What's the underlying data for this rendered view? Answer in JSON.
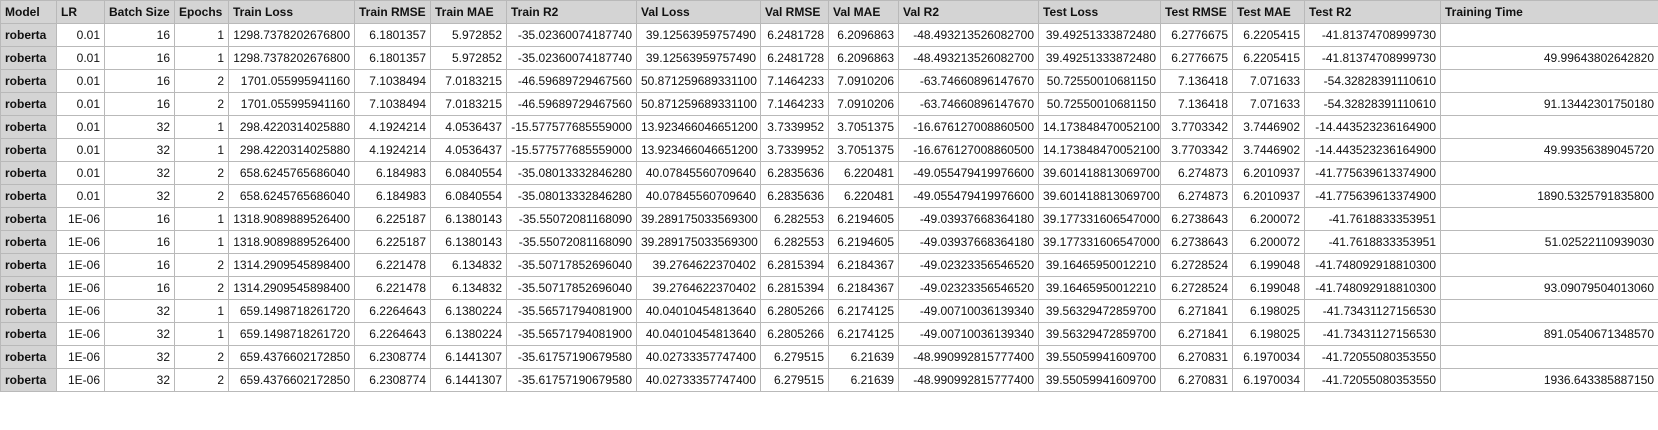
{
  "columns": [
    "Model",
    "LR",
    "Batch Size",
    "Epochs",
    "Train Loss",
    "Train RMSE",
    "Train MAE",
    "Train R2",
    "Val Loss",
    "Val RMSE",
    "Val MAE",
    "Val R2",
    "Test Loss",
    "Test RMSE",
    "Test MAE",
    "Test R2",
    "Training Time"
  ],
  "rows": [
    [
      "roberta",
      "0.01",
      "16",
      "1",
      "1298.7378202676800",
      "6.1801357",
      "5.972852",
      "-35.02360074187740",
      "39.12563959757490",
      "6.2481728",
      "6.2096863",
      "-48.493213526082700",
      "39.49251333872480",
      "6.2776675",
      "6.2205415",
      "-41.81374708999730",
      ""
    ],
    [
      "roberta",
      "0.01",
      "16",
      "1",
      "1298.7378202676800",
      "6.1801357",
      "5.972852",
      "-35.02360074187740",
      "39.12563959757490",
      "6.2481728",
      "6.2096863",
      "-48.493213526082700",
      "39.49251333872480",
      "6.2776675",
      "6.2205415",
      "-41.81374708999730",
      "49.99643802642820"
    ],
    [
      "roberta",
      "0.01",
      "16",
      "2",
      "1701.055995941160",
      "7.1038494",
      "7.0183215",
      "-46.59689729467560",
      "50.871259689331100",
      "7.1464233",
      "7.0910206",
      "-63.74660896147670",
      "50.72550010681150",
      "7.136418",
      "7.071633",
      "-54.32828391110610",
      ""
    ],
    [
      "roberta",
      "0.01",
      "16",
      "2",
      "1701.055995941160",
      "7.1038494",
      "7.0183215",
      "-46.59689729467560",
      "50.871259689331100",
      "7.1464233",
      "7.0910206",
      "-63.74660896147670",
      "50.72550010681150",
      "7.136418",
      "7.071633",
      "-54.32828391110610",
      "91.13442301750180"
    ],
    [
      "roberta",
      "0.01",
      "32",
      "1",
      "298.4220314025880",
      "4.1924214",
      "4.0536437",
      "-15.577577685559000",
      "13.923466046651200",
      "3.7339952",
      "3.7051375",
      "-16.676127008860500",
      "14.173848470052100",
      "3.7703342",
      "3.7446902",
      "-14.443523236164900",
      ""
    ],
    [
      "roberta",
      "0.01",
      "32",
      "1",
      "298.4220314025880",
      "4.1924214",
      "4.0536437",
      "-15.577577685559000",
      "13.923466046651200",
      "3.7339952",
      "3.7051375",
      "-16.676127008860500",
      "14.173848470052100",
      "3.7703342",
      "3.7446902",
      "-14.443523236164900",
      "49.99356389045720"
    ],
    [
      "roberta",
      "0.01",
      "32",
      "2",
      "658.6245765686040",
      "6.184983",
      "6.0840554",
      "-35.08013332846280",
      "40.07845560709640",
      "6.2835636",
      "6.220481",
      "-49.055479419976600",
      "39.601418813069700",
      "6.274873",
      "6.2010937",
      "-41.775639613374900",
      ""
    ],
    [
      "roberta",
      "0.01",
      "32",
      "2",
      "658.6245765686040",
      "6.184983",
      "6.0840554",
      "-35.08013332846280",
      "40.07845560709640",
      "6.2835636",
      "6.220481",
      "-49.055479419976600",
      "39.601418813069700",
      "6.274873",
      "6.2010937",
      "-41.775639613374900",
      "1890.5325791835800"
    ],
    [
      "roberta",
      "1E-06",
      "16",
      "1",
      "1318.9089889526400",
      "6.225187",
      "6.1380143",
      "-35.55072081168090",
      "39.289175033569300",
      "6.282553",
      "6.2194605",
      "-49.03937668364180",
      "39.177331606547000",
      "6.2738643",
      "6.200072",
      "-41.7618833353951",
      ""
    ],
    [
      "roberta",
      "1E-06",
      "16",
      "1",
      "1318.9089889526400",
      "6.225187",
      "6.1380143",
      "-35.55072081168090",
      "39.289175033569300",
      "6.282553",
      "6.2194605",
      "-49.03937668364180",
      "39.177331606547000",
      "6.2738643",
      "6.200072",
      "-41.7618833353951",
      "51.02522110939030"
    ],
    [
      "roberta",
      "1E-06",
      "16",
      "2",
      "1314.2909545898400",
      "6.221478",
      "6.134832",
      "-35.50717852696040",
      "39.2764622370402",
      "6.2815394",
      "6.2184367",
      "-49.02323356546520",
      "39.16465950012210",
      "6.2728524",
      "6.199048",
      "-41.748092918810300",
      ""
    ],
    [
      "roberta",
      "1E-06",
      "16",
      "2",
      "1314.2909545898400",
      "6.221478",
      "6.134832",
      "-35.50717852696040",
      "39.2764622370402",
      "6.2815394",
      "6.2184367",
      "-49.02323356546520",
      "39.16465950012210",
      "6.2728524",
      "6.199048",
      "-41.748092918810300",
      "93.09079504013060"
    ],
    [
      "roberta",
      "1E-06",
      "32",
      "1",
      "659.1498718261720",
      "6.2264643",
      "6.1380224",
      "-35.56571794081900",
      "40.04010454813640",
      "6.2805266",
      "6.2174125",
      "-49.00710036139340",
      "39.56329472859700",
      "6.271841",
      "6.198025",
      "-41.73431127156530",
      ""
    ],
    [
      "roberta",
      "1E-06",
      "32",
      "1",
      "659.1498718261720",
      "6.2264643",
      "6.1380224",
      "-35.56571794081900",
      "40.04010454813640",
      "6.2805266",
      "6.2174125",
      "-49.00710036139340",
      "39.56329472859700",
      "6.271841",
      "6.198025",
      "-41.73431127156530",
      "891.0540671348570"
    ],
    [
      "roberta",
      "1E-06",
      "32",
      "2",
      "659.4376602172850",
      "6.2308774",
      "6.1441307",
      "-35.61757190679580",
      "40.02733357747400",
      "6.279515",
      "6.21639",
      "-48.990992815777400",
      "39.55059941609700",
      "6.270831",
      "6.1970034",
      "-41.72055080353550",
      ""
    ],
    [
      "roberta",
      "1E-06",
      "32",
      "2",
      "659.4376602172850",
      "6.2308774",
      "6.1441307",
      "-35.61757190679580",
      "40.02733357747400",
      "6.279515",
      "6.21639",
      "-48.990992815777400",
      "39.55059941609700",
      "6.270831",
      "6.1970034",
      "-41.72055080353550",
      "1936.643385887150"
    ]
  ]
}
